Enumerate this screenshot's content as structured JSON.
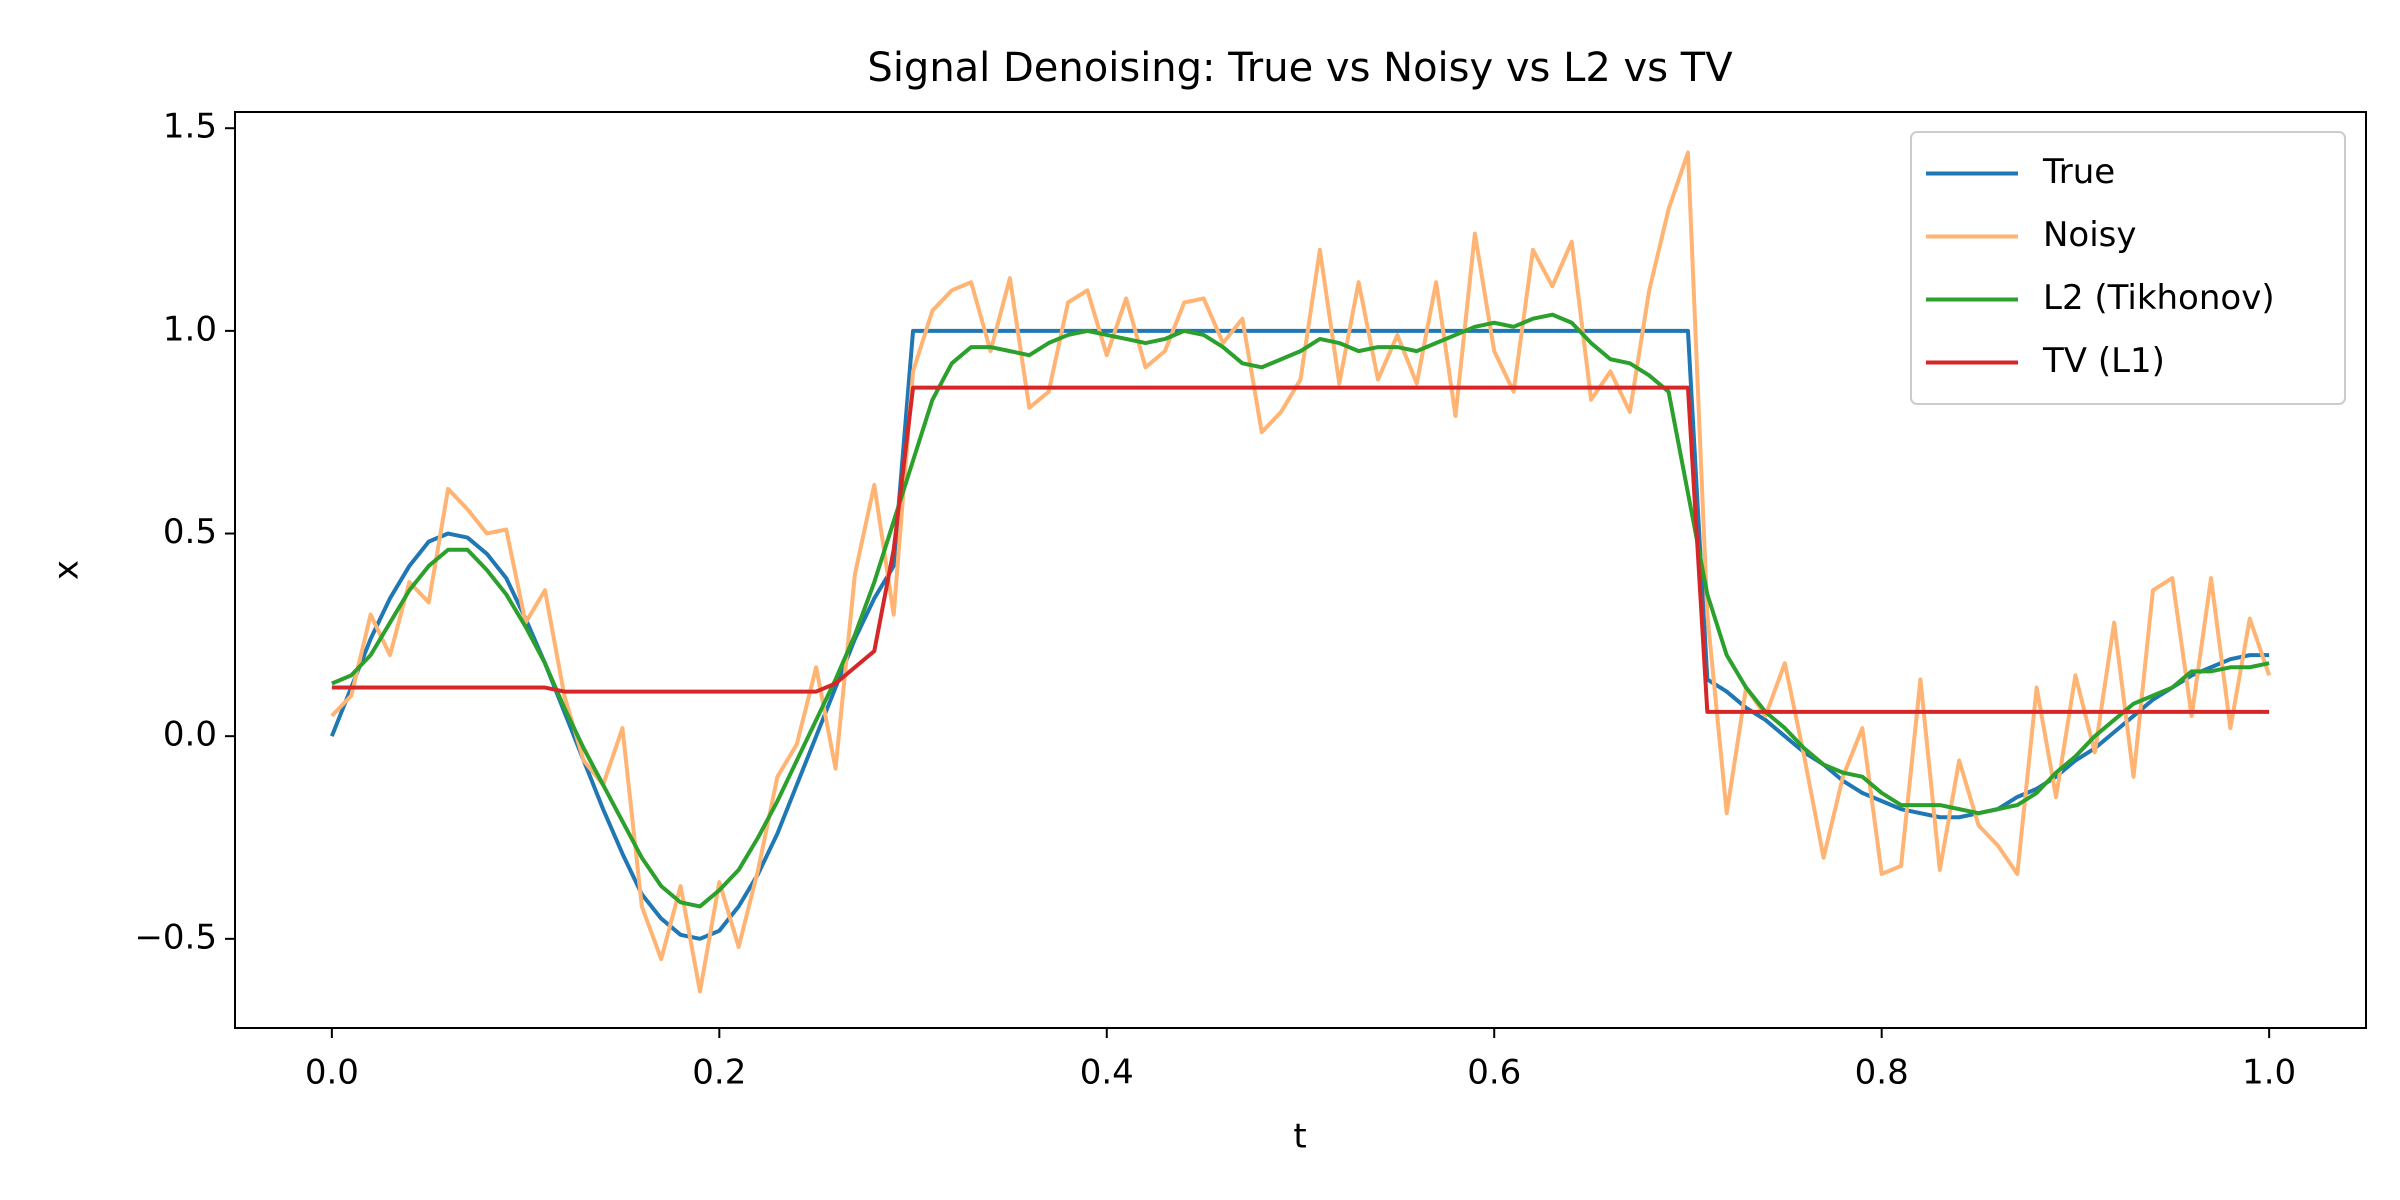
{
  "chart_data": {
    "type": "line",
    "title": "Signal Denoising: True vs Noisy vs L2 vs TV",
    "x_label": "t",
    "y_label": "x",
    "xlim": [
      -0.05,
      1.05
    ],
    "ylim": [
      -0.72,
      1.54
    ],
    "xticks": [
      {
        "value": 0,
        "label": "0.0"
      },
      {
        "value": 0.2,
        "label": "0.2"
      },
      {
        "value": 0.4,
        "label": "0.4"
      },
      {
        "value": 0.6,
        "label": "0.6"
      },
      {
        "value": 0.8,
        "label": "0.8"
      },
      {
        "value": 1,
        "label": "1.0"
      }
    ],
    "yticks": [
      {
        "value": -0.5,
        "label": "−0.5"
      },
      {
        "value": 0,
        "label": "0.0"
      },
      {
        "value": 0.5,
        "label": "0.5"
      },
      {
        "value": 1,
        "label": "1.0"
      },
      {
        "value": 1.5,
        "label": "1.5"
      }
    ],
    "legend": "upper right",
    "x": [
      0,
      0.01,
      0.02,
      0.03,
      0.04,
      0.05,
      0.06,
      0.07,
      0.08,
      0.09,
      0.1,
      0.11,
      0.12,
      0.13,
      0.14,
      0.15,
      0.16,
      0.17,
      0.18,
      0.19,
      0.2,
      0.21,
      0.22,
      0.23,
      0.24,
      0.25,
      0.26,
      0.27,
      0.28,
      0.29,
      0.3,
      0.31,
      0.32,
      0.33,
      0.34,
      0.35,
      0.36,
      0.37,
      0.38,
      0.39,
      0.4,
      0.41,
      0.42,
      0.43,
      0.44,
      0.45,
      0.46,
      0.47,
      0.48,
      0.49,
      0.5,
      0.51,
      0.52,
      0.53,
      0.54,
      0.55,
      0.56,
      0.57,
      0.58,
      0.59,
      0.6,
      0.61,
      0.62,
      0.63,
      0.64,
      0.65,
      0.66,
      0.67,
      0.68,
      0.69,
      0.7,
      0.71,
      0.72,
      0.73,
      0.74,
      0.75,
      0.76,
      0.77,
      0.78,
      0.79,
      0.8,
      0.81,
      0.82,
      0.83,
      0.84,
      0.85,
      0.86,
      0.87,
      0.88,
      0.89,
      0.9,
      0.91,
      0.92,
      0.93,
      0.94,
      0.95,
      0.96,
      0.97,
      0.98,
      0.99,
      1
    ],
    "series": [
      {
        "name": "True",
        "color": "#1f77b4",
        "values": [
          0,
          0.12,
          0.24,
          0.34,
          0.42,
          0.48,
          0.5,
          0.49,
          0.45,
          0.39,
          0.29,
          0.18,
          0.06,
          -0.06,
          -0.18,
          -0.29,
          -0.39,
          -0.45,
          -0.49,
          -0.5,
          -0.48,
          -0.42,
          -0.34,
          -0.24,
          -0.12,
          0,
          0.12,
          0.24,
          0.34,
          0.42,
          1,
          1,
          1,
          1,
          1,
          1,
          1,
          1,
          1,
          1,
          1,
          1,
          1,
          1,
          1,
          1,
          1,
          1,
          1,
          1,
          1,
          1,
          1,
          1,
          1,
          1,
          1,
          1,
          1,
          1,
          1,
          1,
          1,
          1,
          1,
          1,
          1,
          1,
          1,
          1,
          1,
          0.14,
          0.11,
          0.07,
          0.04,
          0,
          -0.04,
          -0.07,
          -0.11,
          -0.14,
          -0.16,
          -0.18,
          -0.19,
          -0.2,
          -0.2,
          -0.19,
          -0.18,
          -0.15,
          -0.13,
          -0.1,
          -0.06,
          -0.03,
          0.01,
          0.05,
          0.09,
          0.12,
          0.15,
          0.17,
          0.19,
          0.2,
          0.2
        ]
      },
      {
        "name": "Noisy",
        "color": "#ffb473",
        "values": [
          0.05,
          0.1,
          0.3,
          0.2,
          0.38,
          0.33,
          0.61,
          0.56,
          0.5,
          0.51,
          0.28,
          0.36,
          0.1,
          -0.06,
          -0.12,
          0.02,
          -0.42,
          -0.55,
          -0.37,
          -0.63,
          -0.36,
          -0.52,
          -0.33,
          -0.1,
          -0.02,
          0.17,
          -0.08,
          0.4,
          0.62,
          0.3,
          0.9,
          1.05,
          1.1,
          1.12,
          0.95,
          1.13,
          0.81,
          0.85,
          1.07,
          1.1,
          0.94,
          1.08,
          0.91,
          0.95,
          1.07,
          1.08,
          0.97,
          1.03,
          0.75,
          0.8,
          0.88,
          1.2,
          0.87,
          1.12,
          0.88,
          0.99,
          0.87,
          1.12,
          0.79,
          1.24,
          0.95,
          0.85,
          1.2,
          1.11,
          1.22,
          0.83,
          0.9,
          0.8,
          1.1,
          1.3,
          1.44,
          0.3,
          -0.19,
          0.12,
          0.05,
          0.18,
          -0.05,
          -0.3,
          -0.1,
          0.02,
          -0.34,
          -0.32,
          0.14,
          -0.33,
          -0.06,
          -0.22,
          -0.27,
          -0.34,
          0.12,
          -0.15,
          0.15,
          -0.04,
          0.28,
          -0.1,
          0.36,
          0.39,
          0.05,
          0.39,
          0.02,
          0.29,
          0.15
        ]
      },
      {
        "name": "L2 (Tikhonov)",
        "color": "#2ca02c",
        "values": [
          0.13,
          0.15,
          0.2,
          0.28,
          0.36,
          0.42,
          0.46,
          0.46,
          0.41,
          0.35,
          0.27,
          0.18,
          0.07,
          -0.03,
          -0.12,
          -0.21,
          -0.3,
          -0.37,
          -0.41,
          -0.42,
          -0.38,
          -0.33,
          -0.25,
          -0.16,
          -0.06,
          0.04,
          0.14,
          0.25,
          0.38,
          0.53,
          0.68,
          0.83,
          0.92,
          0.96,
          0.96,
          0.95,
          0.94,
          0.97,
          0.99,
          1,
          0.99,
          0.98,
          0.97,
          0.98,
          1,
          0.99,
          0.96,
          0.92,
          0.91,
          0.93,
          0.95,
          0.98,
          0.97,
          0.95,
          0.96,
          0.96,
          0.95,
          0.97,
          0.99,
          1.01,
          1.02,
          1.01,
          1.03,
          1.04,
          1.02,
          0.97,
          0.93,
          0.92,
          0.89,
          0.85,
          0.6,
          0.35,
          0.2,
          0.12,
          0.06,
          0.02,
          -0.03,
          -0.07,
          -0.09,
          -0.1,
          -0.14,
          -0.17,
          -0.17,
          -0.17,
          -0.18,
          -0.19,
          -0.18,
          -0.17,
          -0.14,
          -0.09,
          -0.05,
          0,
          0.04,
          0.08,
          0.1,
          0.12,
          0.16,
          0.16,
          0.17,
          0.17,
          0.18
        ]
      },
      {
        "name": "TV (L1)",
        "color": "#d62728",
        "values": [
          0.12,
          0.12,
          0.12,
          0.12,
          0.12,
          0.12,
          0.12,
          0.12,
          0.12,
          0.12,
          0.12,
          0.12,
          0.11,
          0.11,
          0.11,
          0.11,
          0.11,
          0.11,
          0.11,
          0.11,
          0.11,
          0.11,
          0.11,
          0.11,
          0.11,
          0.11,
          0.13,
          0.17,
          0.21,
          0.46,
          0.86,
          0.86,
          0.86,
          0.86,
          0.86,
          0.86,
          0.86,
          0.86,
          0.86,
          0.86,
          0.86,
          0.86,
          0.86,
          0.86,
          0.86,
          0.86,
          0.86,
          0.86,
          0.86,
          0.86,
          0.86,
          0.86,
          0.86,
          0.86,
          0.86,
          0.86,
          0.86,
          0.86,
          0.86,
          0.86,
          0.86,
          0.86,
          0.86,
          0.86,
          0.86,
          0.86,
          0.86,
          0.86,
          0.86,
          0.86,
          0.86,
          0.06,
          0.06,
          0.06,
          0.06,
          0.06,
          0.06,
          0.06,
          0.06,
          0.06,
          0.06,
          0.06,
          0.06,
          0.06,
          0.06,
          0.06,
          0.06,
          0.06,
          0.06,
          0.06,
          0.06,
          0.06,
          0.06,
          0.06,
          0.06,
          0.06,
          0.06,
          0.06,
          0.06,
          0.06,
          0.06
        ]
      }
    ]
  }
}
